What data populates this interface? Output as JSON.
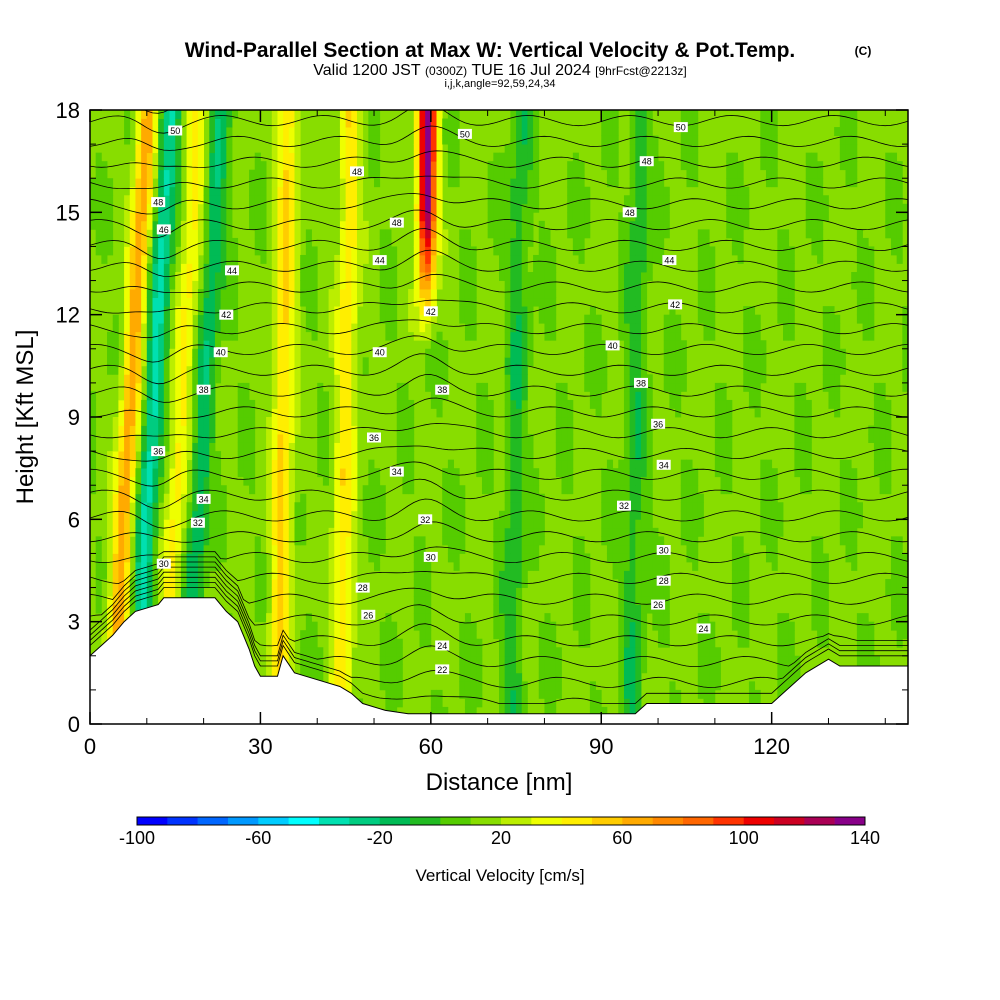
{
  "chart_data": {
    "type": "heatmap",
    "title": "Wind-Parallel Section at Max W: Vertical Velocity & Pot.Temp.",
    "title_mark": "(C)",
    "subtitle": {
      "valid": "Valid 1200 JST",
      "utc": "(0300Z)",
      "date": "TUE 16 Jul 2024",
      "forecast": "[9hrFcst@2213z]",
      "indices": "i,j,k,angle=92,59,24,34"
    },
    "xlabel": "Distance [nm]",
    "ylabel": "Height [Kft MSL]",
    "xlim": [
      0,
      144
    ],
    "ylim": [
      0,
      18
    ],
    "x_ticks": [
      "0",
      "30",
      "60",
      "90",
      "120"
    ],
    "y_ticks": [
      "0",
      "3",
      "6",
      "9",
      "12",
      "15",
      "18"
    ],
    "colorbar": {
      "label": "Vertical Velocity [cm/s]",
      "range": [
        -100,
        140
      ],
      "step": 10,
      "tick_labels": [
        "-100",
        "-60",
        "-20",
        "20",
        "60",
        "100",
        "140"
      ],
      "colors": [
        "#0000ff",
        "#0033ff",
        "#0066ff",
        "#0099ff",
        "#00ccff",
        "#00ffff",
        "#00e0b0",
        "#00cc80",
        "#00bb55",
        "#22bb22",
        "#55cc00",
        "#88dd00",
        "#bbee00",
        "#eeff00",
        "#ffee00",
        "#ffcc00",
        "#ffaa00",
        "#ff8800",
        "#ff6600",
        "#ff3300",
        "#ee0000",
        "#cc0022",
        "#aa0055",
        "#880088"
      ]
    },
    "vertical_velocity_cores": [
      {
        "x": 7,
        "w": 55,
        "note": "updraft"
      },
      {
        "x": 11,
        "w": -45,
        "note": "downdraft"
      },
      {
        "x": 16,
        "w": 30,
        "note": "updraft"
      },
      {
        "x": 20,
        "w": -30,
        "note": "downdraft"
      },
      {
        "x": 34,
        "w": 40,
        "note": "updraft"
      },
      {
        "x": 45,
        "w": 35,
        "note": "updraft"
      },
      {
        "x": 59,
        "w": 125,
        "note": "max updraft"
      },
      {
        "x": 75,
        "w": -20,
        "note": "downdraft"
      },
      {
        "x": 96,
        "w": -20,
        "note": "downdraft"
      }
    ],
    "terrain_kft": [
      [
        0,
        2.0
      ],
      [
        2,
        2.3
      ],
      [
        4,
        2.6
      ],
      [
        6,
        3.0
      ],
      [
        8,
        3.3
      ],
      [
        12,
        3.5
      ],
      [
        13,
        3.7
      ],
      [
        22,
        3.7
      ],
      [
        24,
        3.3
      ],
      [
        26,
        3.0
      ],
      [
        27,
        2.6
      ],
      [
        28,
        2.2
      ],
      [
        29,
        1.7
      ],
      [
        30,
        1.4
      ],
      [
        33,
        1.4
      ],
      [
        34,
        2.0
      ],
      [
        36,
        1.5
      ],
      [
        40,
        1.3
      ],
      [
        44,
        1.1
      ],
      [
        46,
        0.9
      ],
      [
        48,
        0.6
      ],
      [
        52,
        0.4
      ],
      [
        56,
        0.3
      ],
      [
        96,
        0.3
      ],
      [
        98,
        0.6
      ],
      [
        110,
        0.6
      ],
      [
        120,
        0.6
      ],
      [
        122,
        0.9
      ],
      [
        126,
        1.5
      ],
      [
        130,
        1.9
      ],
      [
        132,
        1.7
      ],
      [
        144,
        1.7
      ]
    ],
    "potential_temperature_labels": [
      {
        "text": "50",
        "x": 15,
        "y": 17.4
      },
      {
        "text": "50",
        "x": 66,
        "y": 17.3
      },
      {
        "text": "50",
        "x": 104,
        "y": 17.5
      },
      {
        "text": "48",
        "x": 47,
        "y": 16.2
      },
      {
        "text": "48",
        "x": 98,
        "y": 16.5
      },
      {
        "text": "48",
        "x": 12,
        "y": 15.3
      },
      {
        "text": "48",
        "x": 54,
        "y": 14.7
      },
      {
        "text": "48",
        "x": 95,
        "y": 15.0
      },
      {
        "text": "46",
        "x": 13,
        "y": 14.5
      },
      {
        "text": "44",
        "x": 25,
        "y": 13.3
      },
      {
        "text": "44",
        "x": 51,
        "y": 13.6
      },
      {
        "text": "44",
        "x": 102,
        "y": 13.6
      },
      {
        "text": "42",
        "x": 24,
        "y": 12.0
      },
      {
        "text": "42",
        "x": 60,
        "y": 12.1
      },
      {
        "text": "42",
        "x": 103,
        "y": 12.3
      },
      {
        "text": "40",
        "x": 23,
        "y": 10.9
      },
      {
        "text": "40",
        "x": 51,
        "y": 10.9
      },
      {
        "text": "40",
        "x": 92,
        "y": 11.1
      },
      {
        "text": "38",
        "x": 20,
        "y": 9.8
      },
      {
        "text": "38",
        "x": 62,
        "y": 9.8
      },
      {
        "text": "38",
        "x": 97,
        "y": 10.0
      },
      {
        "text": "36",
        "x": 50,
        "y": 8.4
      },
      {
        "text": "36",
        "x": 100,
        "y": 8.8
      },
      {
        "text": "36",
        "x": 12,
        "y": 8.0
      },
      {
        "text": "34",
        "x": 54,
        "y": 7.4
      },
      {
        "text": "34",
        "x": 20,
        "y": 6.6
      },
      {
        "text": "34",
        "x": 101,
        "y": 7.6
      },
      {
        "text": "32",
        "x": 59,
        "y": 6.0
      },
      {
        "text": "32",
        "x": 94,
        "y": 6.4
      },
      {
        "text": "32",
        "x": 19,
        "y": 5.9
      },
      {
        "text": "30",
        "x": 13,
        "y": 4.7
      },
      {
        "text": "30",
        "x": 60,
        "y": 4.9
      },
      {
        "text": "30",
        "x": 101,
        "y": 5.1
      },
      {
        "text": "28",
        "x": 48,
        "y": 4.0
      },
      {
        "text": "28",
        "x": 101,
        "y": 4.2
      },
      {
        "text": "26",
        "x": 49,
        "y": 3.2
      },
      {
        "text": "26",
        "x": 100,
        "y": 3.5
      },
      {
        "text": "24",
        "x": 62,
        "y": 2.3
      },
      {
        "text": "24",
        "x": 108,
        "y": 2.8
      },
      {
        "text": "22",
        "x": 62,
        "y": 1.6
      }
    ]
  }
}
